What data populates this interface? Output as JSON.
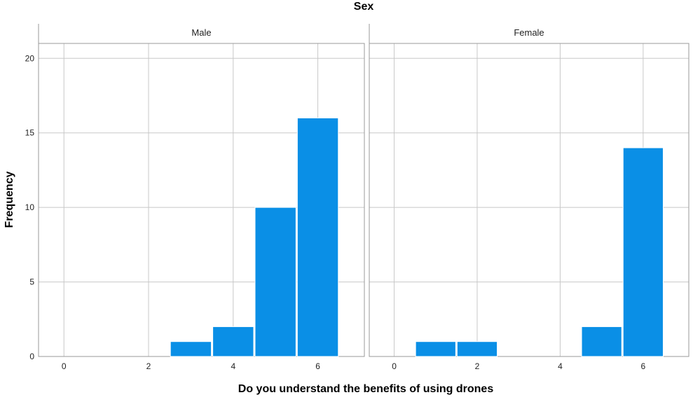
{
  "chart_data": {
    "type": "bar",
    "title": "Sex",
    "xlabel": "Do you understand the benefits of using drones",
    "ylabel": "Frequency",
    "ylim": [
      0,
      21
    ],
    "yticks": [
      0,
      5,
      10,
      15,
      20
    ],
    "xlim": [
      -0.6,
      7.1
    ],
    "xticks": [
      0,
      2,
      4,
      6
    ],
    "grid": true,
    "bar_color": "#0A8FE6",
    "panels": [
      {
        "name": "Male",
        "bars": [
          {
            "x": 3,
            "value": 1
          },
          {
            "x": 4,
            "value": 2
          },
          {
            "x": 5,
            "value": 10
          },
          {
            "x": 6,
            "value": 16
          }
        ]
      },
      {
        "name": "Female",
        "bars": [
          {
            "x": 1,
            "value": 1
          },
          {
            "x": 2,
            "value": 1
          },
          {
            "x": 5,
            "value": 2
          },
          {
            "x": 6,
            "value": 14
          }
        ]
      }
    ]
  }
}
